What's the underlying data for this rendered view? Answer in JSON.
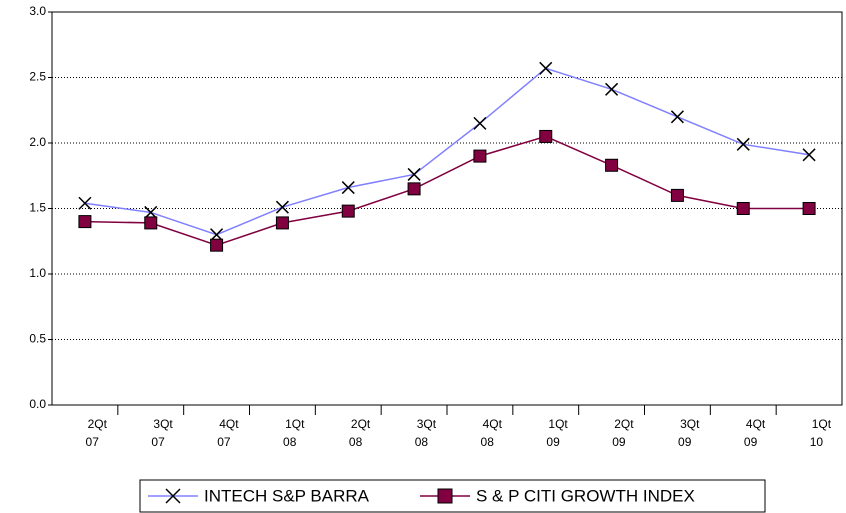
{
  "chart_data": {
    "type": "line",
    "categories": [
      [
        "2Qt",
        "07"
      ],
      [
        "3Qt",
        "07"
      ],
      [
        "4Qt",
        "07"
      ],
      [
        "1Qt",
        "08"
      ],
      [
        "2Qt",
        "08"
      ],
      [
        "3Qt",
        "08"
      ],
      [
        "4Qt",
        "08"
      ],
      [
        "1Qt",
        "09"
      ],
      [
        "2Qt",
        "09"
      ],
      [
        "3Qt",
        "09"
      ],
      [
        "4Qt",
        "09"
      ],
      [
        "1Qt",
        "10"
      ]
    ],
    "series": [
      {
        "name": "INTECH S&P BARRA",
        "color": "#8080ff",
        "marker": "x",
        "values": [
          1.54,
          1.47,
          1.3,
          1.51,
          1.66,
          1.76,
          2.15,
          2.57,
          2.41,
          2.2,
          1.99,
          1.91
        ]
      },
      {
        "name": "S & P CITI GROWTH INDEX",
        "color": "#800040",
        "marker": "square",
        "values": [
          1.4,
          1.39,
          1.22,
          1.39,
          1.48,
          1.65,
          1.9,
          2.05,
          1.83,
          1.6,
          1.5,
          1.5
        ]
      }
    ],
    "ylim": [
      0,
      3
    ],
    "yticks": [
      {
        "value": 0,
        "label": "0.0"
      },
      0.5,
      {
        "value": 1,
        "label": "1.0"
      },
      1.5,
      {
        "value": 2,
        "label": "2.0"
      },
      2.5,
      {
        "value": 3,
        "label": "3.0"
      }
    ],
    "grid": true,
    "legend": "bottom"
  }
}
